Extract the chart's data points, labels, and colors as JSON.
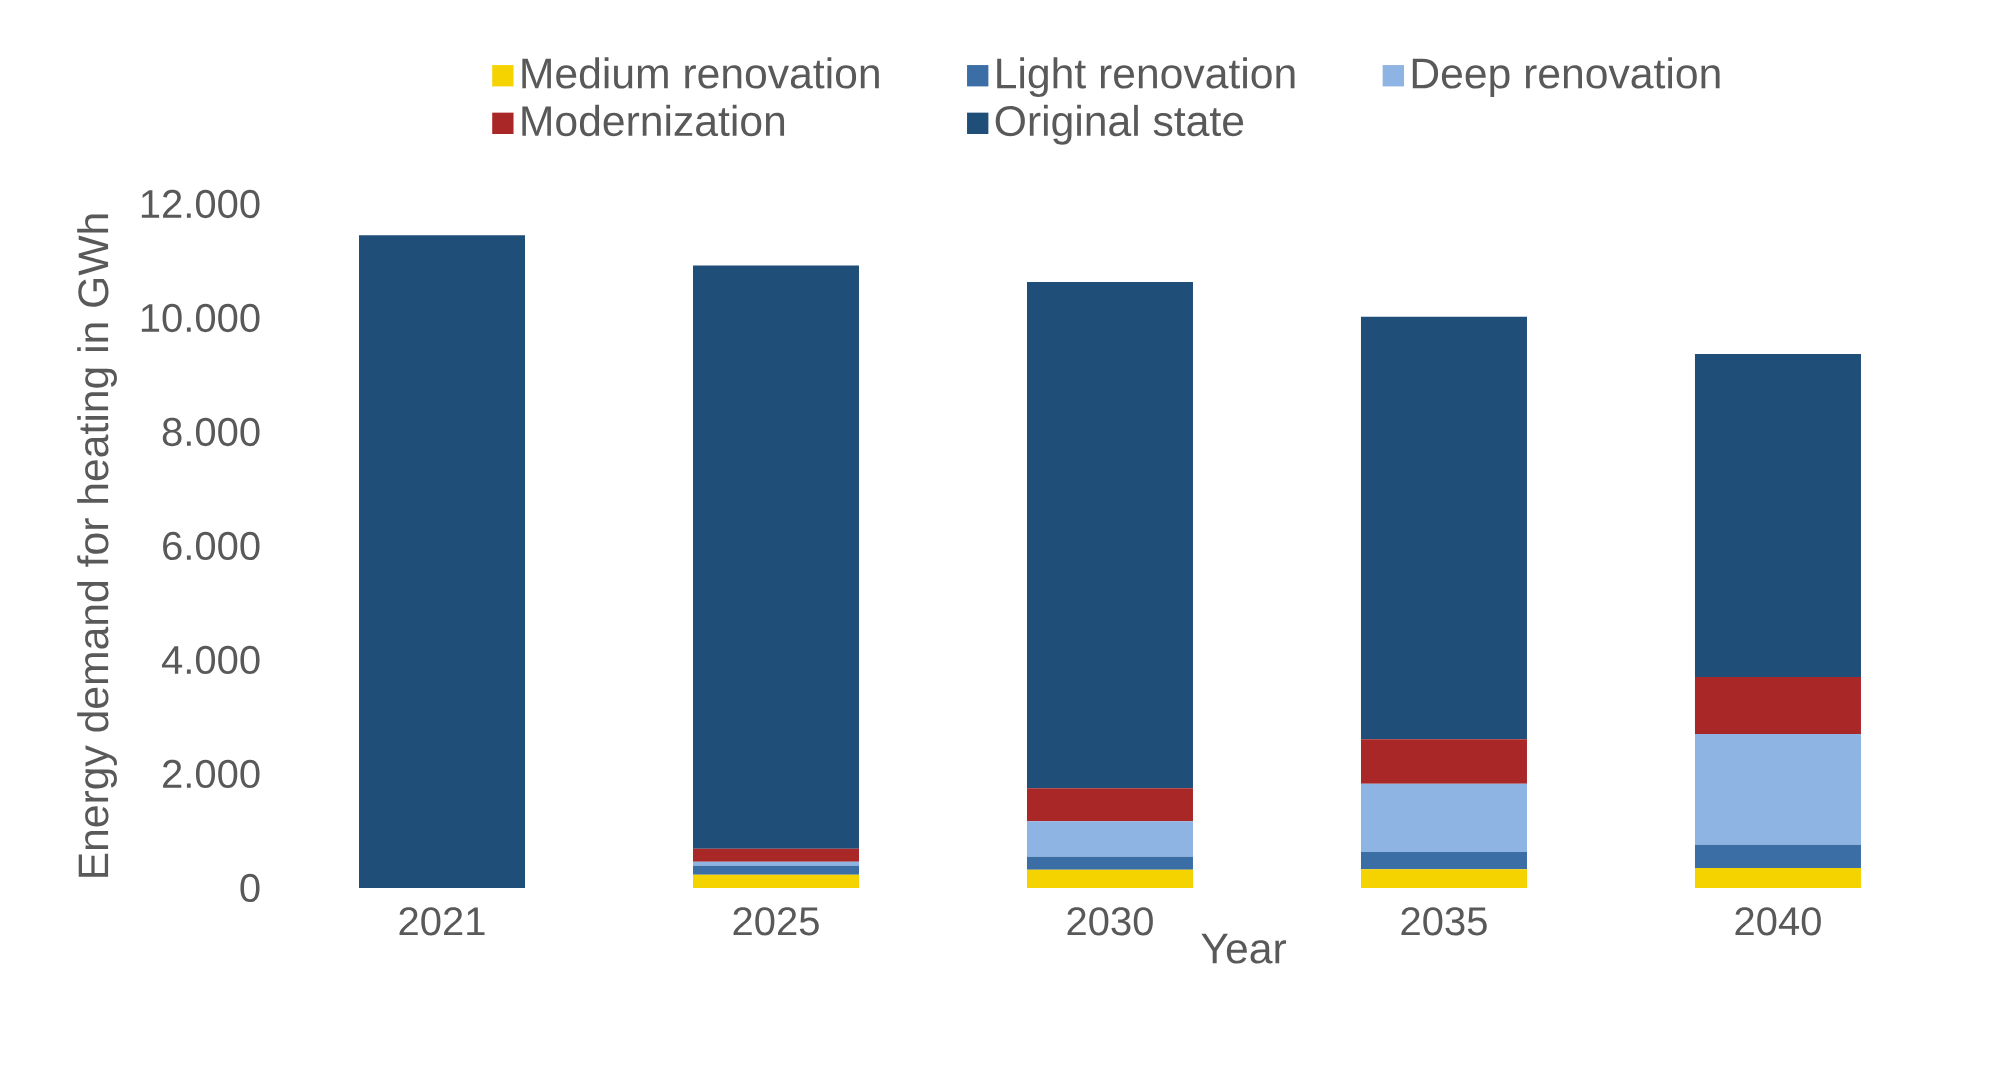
{
  "chart_data": {
    "type": "bar",
    "stacked": true,
    "xlabel": "Year",
    "ylabel": "Energy demand for heating in GWh",
    "categories": [
      "2021",
      "2025",
      "2030",
      "2035",
      "2040"
    ],
    "series": [
      {
        "name": "Medium renovation",
        "color": "#f5d300",
        "values": [
          0,
          230,
          320,
          330,
          350
        ]
      },
      {
        "name": "Light renovation",
        "color": "#3a6ea5",
        "values": [
          0,
          160,
          230,
          300,
          410
        ]
      },
      {
        "name": "Deep renovation",
        "color": "#8db4e2",
        "values": [
          0,
          70,
          620,
          1200,
          1940
        ]
      },
      {
        "name": "Modernization",
        "color": "#a92727",
        "values": [
          0,
          230,
          580,
          780,
          1000
        ]
      },
      {
        "name": "Original state",
        "color": "#1f4e79",
        "values": [
          11450,
          10230,
          8880,
          7410,
          5670
        ]
      }
    ],
    "ylim": [
      0,
      12000
    ],
    "yticks": [
      {
        "value": 0,
        "label": "0"
      },
      {
        "value": 2000,
        "label": "2.000"
      },
      {
        "value": 4000,
        "label": "4.000"
      },
      {
        "value": 6000,
        "label": "6.000"
      },
      {
        "value": 8000,
        "label": "8.000"
      },
      {
        "value": 10000,
        "label": "10.000"
      },
      {
        "value": 12000,
        "label": "12.000"
      }
    ],
    "legend": "top",
    "grid": false
  }
}
